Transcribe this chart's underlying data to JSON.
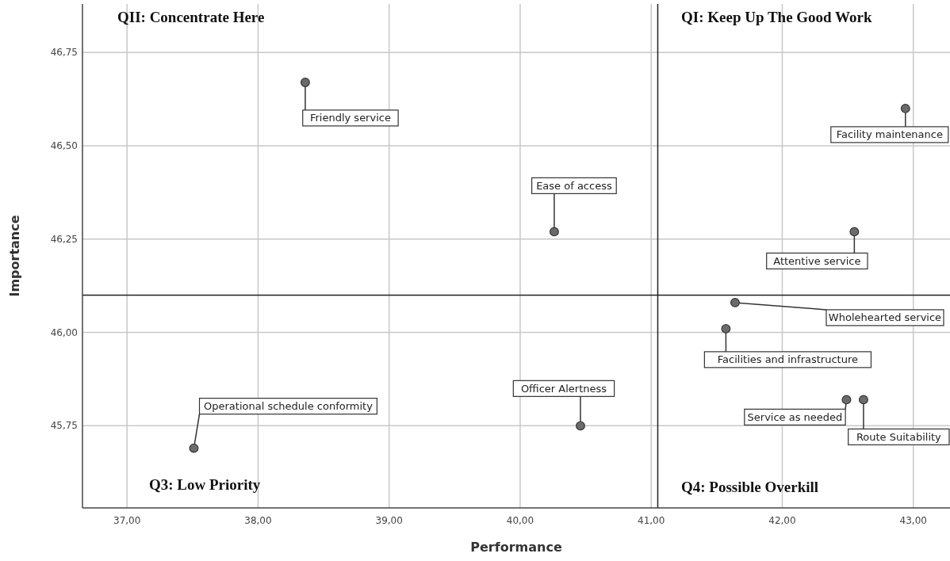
{
  "chart_data": {
    "type": "scatter",
    "xlabel": "Performance",
    "ylabel": "Importance",
    "xlim": [
      36.66,
      43.28
    ],
    "ylim": [
      45.53,
      46.88
    ],
    "xticks": [
      {
        "value": 37,
        "label": "37,00"
      },
      {
        "value": 38,
        "label": "38,00"
      },
      {
        "value": 39,
        "label": "39,00"
      },
      {
        "value": 40,
        "label": "40,00"
      },
      {
        "value": 41,
        "label": "41,00"
      },
      {
        "value": 42,
        "label": "42,00"
      },
      {
        "value": 43,
        "label": "43,00"
      }
    ],
    "yticks": [
      {
        "value": 45.75,
        "label": "45,75"
      },
      {
        "value": 46,
        "label": "46,00"
      },
      {
        "value": 46.25,
        "label": "46,25"
      },
      {
        "value": 46.5,
        "label": "46,50"
      },
      {
        "value": 46.75,
        "label": "46,75"
      }
    ],
    "grid": true,
    "marker": "circle",
    "series": [
      {
        "color": "#6b6b6b",
        "x": [
          38.36,
          42.94,
          40.26,
          42.55,
          41.64,
          41.57,
          42.49,
          42.62,
          40.46,
          37.51
        ],
        "values": [
          46.67,
          46.6,
          46.27,
          46.27,
          46.08,
          46.01,
          45.82,
          45.82,
          45.75,
          45.69
        ]
      }
    ],
    "ref_lines": [
      {
        "axis": "x",
        "value": 41.05
      },
      {
        "axis": "y",
        "value": 46.1
      }
    ],
    "annotations": [
      "QII: Concentrate Here",
      "QI: Keep Up The Good Work",
      "Q3: Low Priority",
      "Q4: Possible Overkill",
      {
        "text": "Friendly service",
        "x": 38.36,
        "y": 46.67
      },
      {
        "text": "Facility maintenance",
        "x": 42.94,
        "y": 46.6
      },
      {
        "text": "Ease of access",
        "x": 40.26,
        "y": 46.27
      },
      {
        "text": "Attentive service",
        "x": 42.55,
        "y": 46.27
      },
      {
        "text": "Wholehearted service",
        "x": 41.64,
        "y": 46.08
      },
      {
        "text": "Facilities and infrastructure",
        "x": 41.57,
        "y": 46.01
      },
      {
        "text": "Service as needed",
        "x": 42.49,
        "y": 45.82
      },
      {
        "text": "Route Suitability",
        "x": 42.62,
        "y": 45.82
      },
      {
        "text": "Officer Alertness",
        "x": 40.46,
        "y": 45.75
      },
      {
        "text": "Operational schedule conformity",
        "x": 37.51,
        "y": 45.69
      }
    ]
  }
}
